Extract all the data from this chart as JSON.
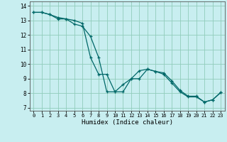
{
  "xlabel": "Humidex (Indice chaleur)",
  "background_color": "#c8eef0",
  "grid_color": "#90ccbb",
  "line_color": "#006868",
  "xlim": [
    -0.5,
    23.5
  ],
  "ylim": [
    6.8,
    14.3
  ],
  "xticks": [
    0,
    1,
    2,
    3,
    4,
    5,
    6,
    7,
    8,
    9,
    10,
    11,
    12,
    13,
    14,
    15,
    16,
    17,
    18,
    19,
    20,
    21,
    22,
    23
  ],
  "yticks": [
    7,
    8,
    9,
    10,
    11,
    12,
    13,
    14
  ],
  "series1_x": [
    0,
    1,
    2,
    3,
    4,
    5,
    6,
    7,
    8,
    9,
    10,
    11,
    12,
    13,
    14,
    15,
    16,
    17,
    18,
    19,
    20,
    21,
    22,
    23
  ],
  "series1_y": [
    13.55,
    13.55,
    13.4,
    13.2,
    13.1,
    13.0,
    12.8,
    10.45,
    9.3,
    9.3,
    8.1,
    8.6,
    9.0,
    9.0,
    9.65,
    9.5,
    9.4,
    8.85,
    8.2,
    7.8,
    7.8,
    7.4,
    7.55,
    8.05
  ],
  "series2_x": [
    0,
    1,
    2,
    3,
    4,
    5,
    6,
    7,
    8,
    9,
    10,
    11,
    12,
    13,
    14,
    15,
    16,
    17,
    18,
    19,
    20,
    21,
    22,
    23
  ],
  "series2_y": [
    13.55,
    13.55,
    13.4,
    13.1,
    13.1,
    12.75,
    12.6,
    11.9,
    10.45,
    8.1,
    8.1,
    8.1,
    9.0,
    9.55,
    9.65,
    9.5,
    9.3,
    8.7,
    8.1,
    7.75,
    7.75,
    7.4,
    7.55,
    8.05
  ]
}
